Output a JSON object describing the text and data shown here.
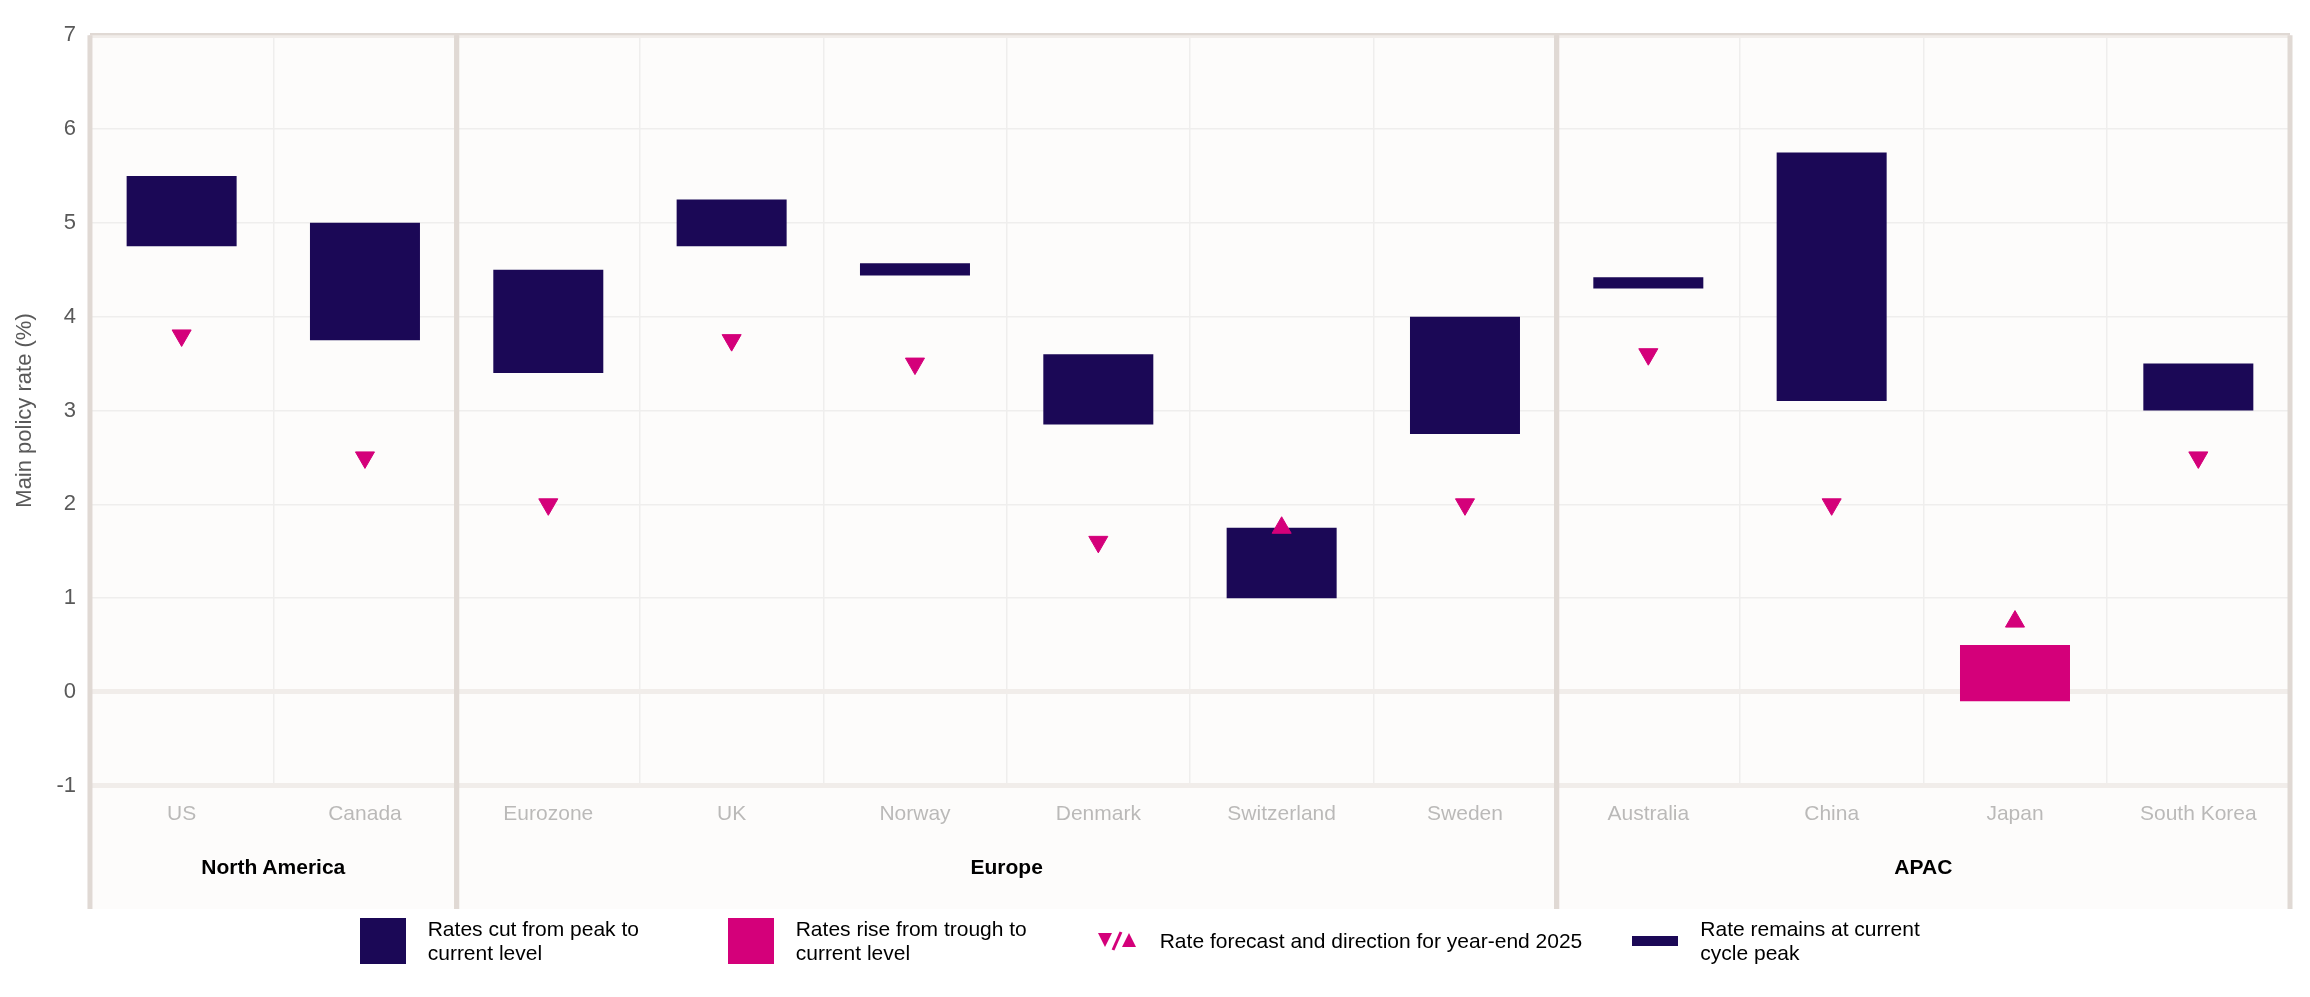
{
  "chart_data": {
    "type": "bar",
    "ylabel": "Main policy rate (%)",
    "categories": [
      "US",
      "Canada",
      "Eurozone",
      "UK",
      "Norway",
      "Denmark",
      "Switzerland",
      "Sweden",
      "Australia",
      "China",
      "Japan",
      "South Korea"
    ],
    "series": [
      {
        "name": "Rates cut from peak to current level",
        "color": "#1b0856",
        "base": [
          4.75,
          3.75,
          3.4,
          4.75,
          null,
          2.85,
          1.0,
          2.75,
          null,
          3.1,
          null,
          3.0
        ],
        "values": [
          0.75,
          1.25,
          1.1,
          0.5,
          null,
          0.75,
          0.75,
          1.25,
          null,
          2.65,
          null,
          0.5
        ]
      },
      {
        "name": "Rates rise from trough to current level",
        "color": "#d4007a",
        "base": [
          null,
          null,
          null,
          null,
          null,
          null,
          null,
          null,
          null,
          null,
          -0.1,
          null
        ],
        "values": [
          null,
          null,
          null,
          null,
          null,
          null,
          null,
          null,
          null,
          null,
          0.6,
          null
        ]
      },
      {
        "name": "Rate forecast and direction for year-end 2025",
        "type": "scatter",
        "marker": "triangle",
        "color": "#d4007a",
        "values": [
          3.8,
          2.5,
          2.0,
          3.75,
          3.5,
          1.6,
          1.75,
          2.0,
          3.6,
          2.0,
          0.75,
          2.5
        ]
      },
      {
        "name": "Rate remains at current cycle peak",
        "color": "#1b0856",
        "base": [
          null,
          null,
          null,
          null,
          4.44,
          null,
          null,
          null,
          4.3,
          null,
          null,
          null
        ],
        "values": [
          null,
          null,
          null,
          null,
          0.13,
          null,
          null,
          null,
          0.12,
          null,
          null,
          null
        ]
      }
    ],
    "bands": [
      {
        "axis": "x",
        "from": "US",
        "to": "Canada",
        "label": "North America",
        "color": "#fbfaf9"
      },
      {
        "axis": "x",
        "from": "Eurozone",
        "to": "Sweden",
        "label": "Europe",
        "color": "#fbfaf9"
      },
      {
        "axis": "x",
        "from": "Australia",
        "to": "South Korea",
        "label": "APAC",
        "color": "#fbfaf9"
      }
    ],
    "ylim": [
      -1,
      7
    ],
    "yticks": [
      -1,
      0,
      1,
      2,
      3,
      4,
      5,
      6,
      7
    ],
    "grid": true,
    "legend": "bottom"
  }
}
